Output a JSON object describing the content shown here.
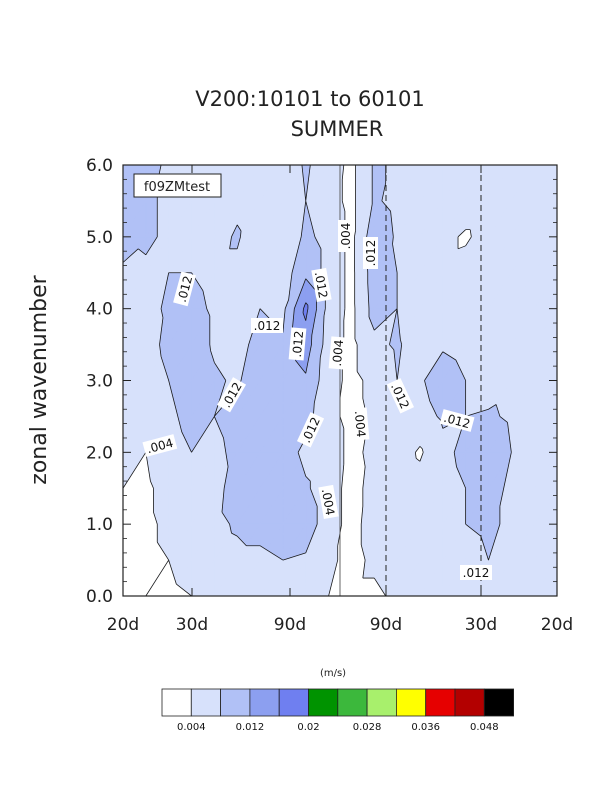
{
  "chart_data": {
    "type": "heatmap",
    "title": "V200:10101 to 60101",
    "subtitle": "SUMMER",
    "ylabel": "zonal wavenumber",
    "ylim": [
      0.0,
      6.0
    ],
    "yticks": [
      "0.0",
      "1.0",
      "2.0",
      "3.0",
      "4.0",
      "5.0",
      "6.0"
    ],
    "xticks": [
      "20d",
      "30d",
      "90d",
      "90d",
      "30d",
      "20d"
    ],
    "case_label": "f09ZMtest",
    "units": "(m/s)",
    "colorbar_labels": [
      "0.004",
      "0.012",
      "0.02",
      "0.028",
      "0.036",
      "0.048"
    ],
    "level_colors": [
      "#ffffff",
      "#d7e1fb",
      "#b1c1f6",
      "#8c9ff0",
      "#6f7ff0",
      "#009300",
      "#3cb83c",
      "#a8f06c",
      "#ffff00",
      "#e60000",
      "#b30000",
      "#000000"
    ],
    "contour_labels": [
      ".012",
      ".012",
      ".012",
      ".012",
      ".012",
      ".004",
      ".012",
      ".012",
      ".004",
      ".004",
      ".012",
      ".004",
      ".012",
      ".012",
      ".004",
      ".012",
      ".012"
    ],
    "values": {
      "x": [
        0,
        1,
        2,
        3,
        4,
        5,
        6,
        7,
        8,
        9,
        10,
        11,
        12,
        13,
        14,
        15,
        16,
        17,
        18,
        19
      ],
      "y": [
        0,
        0.5,
        1,
        1.5,
        2,
        2.5,
        3,
        3.5,
        4,
        4.5,
        5,
        5.5,
        6
      ],
      "z": [
        [
          0.003,
          0.004,
          0.003,
          0.004,
          0.007,
          0.008,
          0.006,
          0.006,
          0.007,
          0.004,
          0.002,
          0.002,
          0.006,
          0.007,
          0.006,
          0.006,
          0.006,
          0.005,
          0.005,
          0.005
        ],
        [
          0.002,
          0.003,
          0.004,
          0.006,
          0.009,
          0.01,
          0.01,
          0.012,
          0.011,
          0.006,
          0.001,
          0.006,
          0.01,
          0.009,
          0.007,
          0.008,
          0.012,
          0.009,
          0.007,
          0.006
        ],
        [
          0.003,
          0.003,
          0.005,
          0.008,
          0.01,
          0.013,
          0.015,
          0.017,
          0.016,
          0.008,
          0.001,
          0.008,
          0.011,
          0.009,
          0.008,
          0.012,
          0.014,
          0.01,
          0.007,
          0.006
        ],
        [
          0.004,
          0.003,
          0.006,
          0.009,
          0.009,
          0.016,
          0.018,
          0.019,
          0.013,
          0.008,
          0.001,
          0.007,
          0.009,
          0.007,
          0.009,
          0.012,
          0.016,
          0.01,
          0.007,
          0.006
        ],
        [
          0.004,
          0.004,
          0.008,
          0.012,
          0.01,
          0.014,
          0.017,
          0.016,
          0.01,
          0.008,
          0.002,
          0.006,
          0.008,
          0.003,
          0.01,
          0.014,
          0.017,
          0.012,
          0.008,
          0.006
        ],
        [
          0.005,
          0.006,
          0.01,
          0.015,
          0.012,
          0.015,
          0.016,
          0.012,
          0.015,
          0.006,
          0.002,
          0.005,
          0.009,
          0.009,
          0.013,
          0.012,
          0.013,
          0.011,
          0.009,
          0.007
        ],
        [
          0.006,
          0.008,
          0.012,
          0.017,
          0.013,
          0.011,
          0.017,
          0.015,
          0.019,
          0.007,
          0.002,
          0.006,
          0.012,
          0.011,
          0.016,
          0.012,
          0.008,
          0.01,
          0.009,
          0.007
        ],
        [
          0.007,
          0.009,
          0.014,
          0.016,
          0.011,
          0.009,
          0.015,
          0.013,
          0.024,
          0.008,
          0.002,
          0.01,
          0.013,
          0.008,
          0.011,
          0.009,
          0.008,
          0.009,
          0.009,
          0.007
        ],
        [
          0.009,
          0.01,
          0.013,
          0.014,
          0.011,
          0.008,
          0.012,
          0.01,
          0.03,
          0.009,
          0.002,
          0.015,
          0.012,
          0.006,
          0.007,
          0.008,
          0.009,
          0.01,
          0.008,
          0.007
        ],
        [
          0.01,
          0.011,
          0.012,
          0.012,
          0.01,
          0.01,
          0.008,
          0.008,
          0.018,
          0.009,
          0.002,
          0.016,
          0.012,
          0.008,
          0.006,
          0.007,
          0.008,
          0.009,
          0.008,
          0.007
        ],
        [
          0.017,
          0.013,
          0.011,
          0.01,
          0.009,
          0.013,
          0.006,
          0.004,
          0.014,
          0.009,
          0.002,
          0.017,
          0.011,
          0.005,
          0.006,
          0.003,
          0.007,
          0.005,
          0.007,
          0.005
        ],
        [
          0.018,
          0.013,
          0.011,
          0.008,
          0.008,
          0.01,
          0.007,
          0.006,
          0.012,
          0.007,
          0.002,
          0.013,
          0.01,
          0.008,
          0.007,
          0.008,
          0.008,
          0.007,
          0.006,
          0.005
        ],
        [
          0.019,
          0.014,
          0.011,
          0.009,
          0.009,
          0.01,
          0.006,
          0.007,
          0.013,
          0.008,
          0.002,
          0.013,
          0.011,
          0.009,
          0.008,
          0.008,
          0.009,
          0.007,
          0.006,
          0.005
        ]
      ]
    }
  }
}
